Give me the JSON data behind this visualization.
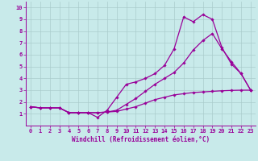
{
  "xlabel": "Windchill (Refroidissement éolien,°C)",
  "ylabel": "",
  "bg_color": "#c8eaea",
  "line_color": "#990099",
  "grid_color": "#aacccc",
  "xlim": [
    -0.5,
    23.5
  ],
  "ylim": [
    0.0,
    10.5
  ],
  "xticks": [
    0,
    1,
    2,
    3,
    4,
    5,
    6,
    7,
    8,
    9,
    10,
    11,
    12,
    13,
    14,
    15,
    16,
    17,
    18,
    19,
    20,
    21,
    22,
    23
  ],
  "yticks": [
    1,
    2,
    3,
    4,
    5,
    6,
    7,
    8,
    9,
    10
  ],
  "line1_x": [
    0,
    1,
    2,
    3,
    4,
    5,
    6,
    7,
    8,
    9,
    10,
    11,
    12,
    13,
    14,
    15,
    16,
    17,
    18,
    19,
    20,
    21,
    22,
    23
  ],
  "line1_y": [
    1.6,
    1.5,
    1.5,
    1.5,
    1.1,
    1.1,
    1.1,
    1.1,
    1.15,
    1.2,
    1.4,
    1.6,
    1.9,
    2.2,
    2.4,
    2.6,
    2.7,
    2.8,
    2.85,
    2.9,
    2.95,
    2.98,
    3.0,
    3.0
  ],
  "line2_x": [
    0,
    1,
    2,
    3,
    4,
    5,
    6,
    7,
    8,
    9,
    10,
    11,
    12,
    13,
    14,
    15,
    16,
    17,
    18,
    19,
    20,
    21,
    22,
    23
  ],
  "line2_y": [
    1.6,
    1.5,
    1.5,
    1.5,
    1.1,
    1.1,
    1.1,
    0.7,
    1.3,
    2.4,
    3.5,
    3.7,
    4.0,
    4.4,
    5.1,
    6.5,
    9.2,
    8.8,
    9.4,
    9.0,
    6.6,
    5.2,
    4.4,
    3.0
  ],
  "line3_x": [
    0,
    1,
    2,
    3,
    4,
    5,
    6,
    7,
    8,
    9,
    10,
    11,
    12,
    13,
    14,
    15,
    16,
    17,
    18,
    19,
    20,
    21,
    22,
    23
  ],
  "line3_y": [
    1.6,
    1.5,
    1.5,
    1.5,
    1.1,
    1.1,
    1.1,
    1.1,
    1.15,
    1.3,
    1.8,
    2.3,
    2.9,
    3.5,
    4.0,
    4.5,
    5.3,
    6.4,
    7.2,
    7.8,
    6.5,
    5.4,
    4.4,
    3.0
  ],
  "tick_fontsize": 5.0,
  "xlabel_fontsize": 5.5,
  "marker_size": 1.8,
  "line_width": 0.9
}
